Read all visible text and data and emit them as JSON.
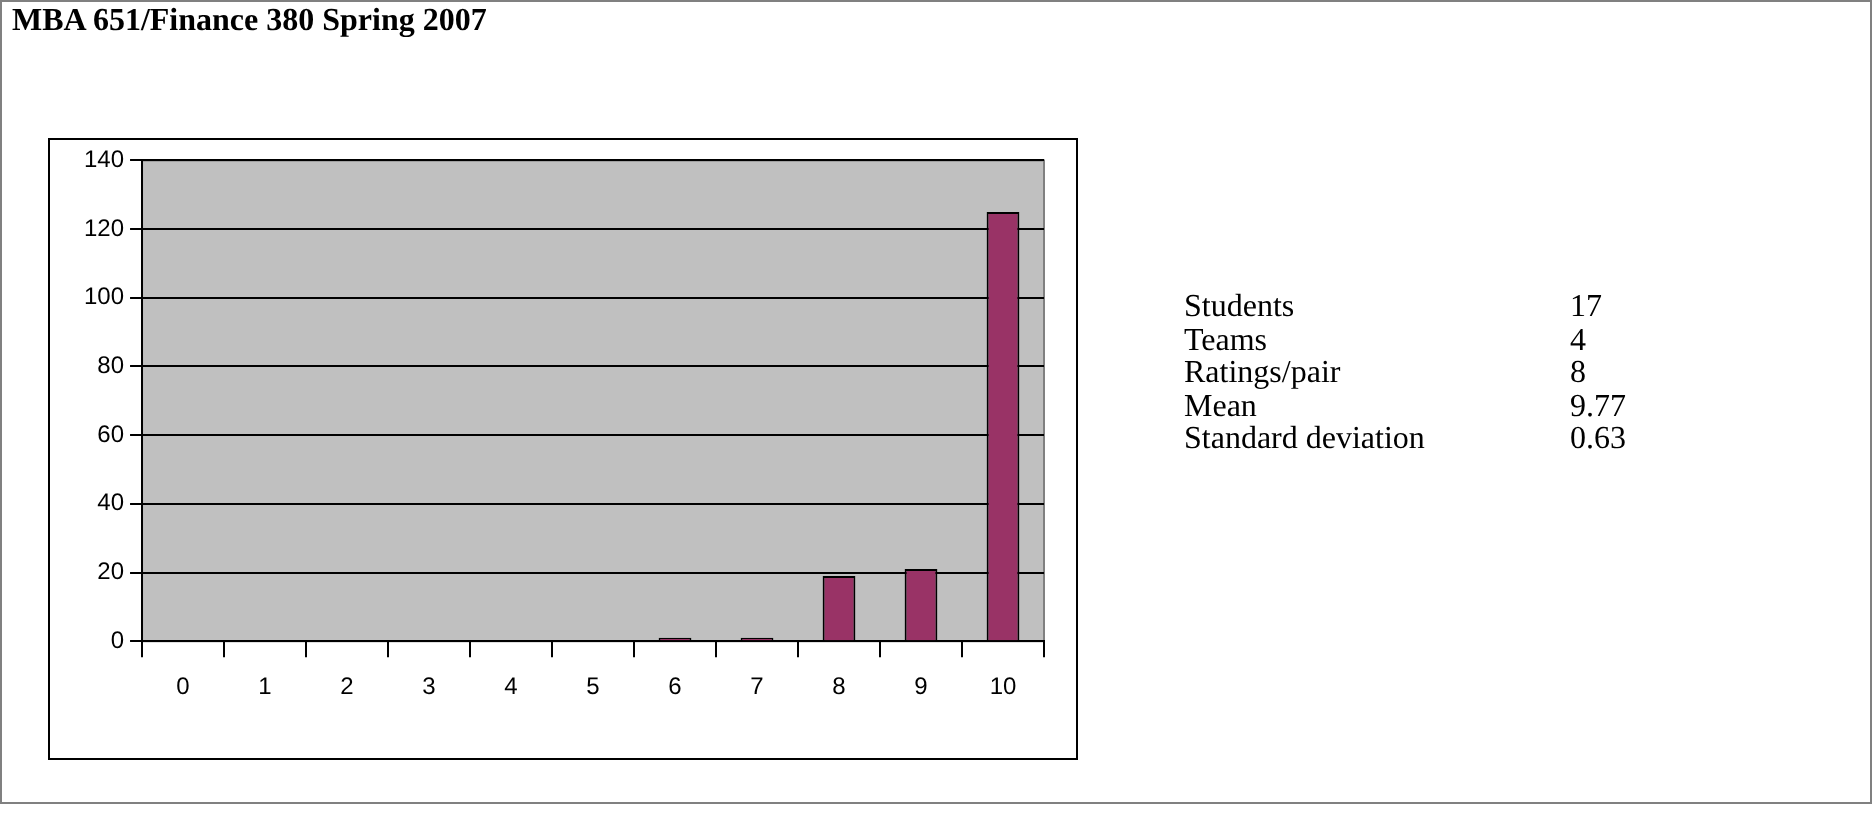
{
  "chart_data": [
    {
      "type": "bar",
      "title": "MBA 651/Finance 380 Spring 2007",
      "categories": [
        "0",
        "1",
        "2",
        "3",
        "4",
        "5",
        "6",
        "7",
        "8",
        "9",
        "10"
      ],
      "values": [
        0,
        0,
        0,
        0,
        0,
        0,
        1,
        1,
        19,
        21,
        125
      ],
      "color": "#993366",
      "ylim": [
        0,
        140
      ],
      "yticks": [
        0,
        20,
        40,
        60,
        80,
        100,
        120,
        140
      ],
      "grid": "y",
      "legend": false
    },
    {
      "type": "other",
      "annotations": [
        "Students",
        "17",
        "Teams",
        "4",
        "Ratings/pair",
        "8",
        "Mean",
        "9.77",
        "Standard deviation",
        "0.63"
      ]
    }
  ]
}
